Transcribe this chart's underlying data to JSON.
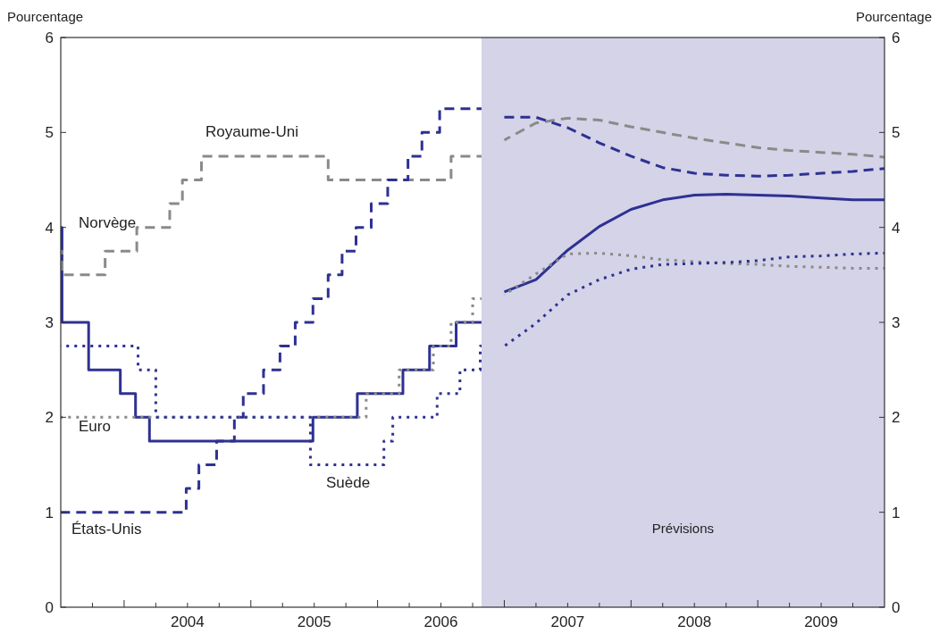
{
  "chart_data": {
    "type": "line",
    "ylabel": "Pourcentage",
    "y2label": "Pourcentage",
    "xlim": [
      2003.5,
      2010
    ],
    "xticks": [
      {
        "value": 2003.75,
        "label": null
      },
      {
        "value": 2004,
        "label": null
      },
      {
        "value": 2004.25,
        "label": null
      },
      {
        "value": 2004.5,
        "label": "2004"
      },
      {
        "value": 2004.75,
        "label": null
      },
      {
        "value": 2005,
        "label": null
      },
      {
        "value": 2005.25,
        "label": null
      },
      {
        "value": 2005.5,
        "label": "2005"
      },
      {
        "value": 2005.75,
        "label": null
      },
      {
        "value": 2006,
        "label": null
      },
      {
        "value": 2006.25,
        "label": null
      },
      {
        "value": 2006.5,
        "label": "2006"
      },
      {
        "value": 2006.75,
        "label": null
      },
      {
        "value": 2007,
        "label": null
      },
      {
        "value": 2007.25,
        "label": null
      },
      {
        "value": 2007.5,
        "label": "2007"
      },
      {
        "value": 2007.75,
        "label": null
      },
      {
        "value": 2008,
        "label": null
      },
      {
        "value": 2008.25,
        "label": null
      },
      {
        "value": 2008.5,
        "label": "2008"
      },
      {
        "value": 2008.75,
        "label": null
      },
      {
        "value": 2009,
        "label": null
      },
      {
        "value": 2009.25,
        "label": null
      },
      {
        "value": 2009.5,
        "label": "2009"
      },
      {
        "value": 2009.75,
        "label": null
      }
    ],
    "ylim": [
      0,
      6
    ],
    "yticks": [
      0,
      1,
      2,
      3,
      4,
      5,
      6
    ],
    "y2lim": [
      0,
      6
    ],
    "y2ticks": [
      0,
      1,
      2,
      3,
      4,
      5,
      6
    ],
    "grid": false,
    "bands": [
      {
        "axis": "x",
        "from": 2006.82,
        "to": 2010,
        "label": "Prévisions",
        "color": "#d4d3e8"
      }
    ],
    "series": [
      {
        "name": "Norvège",
        "type": "step",
        "color": "#2e3192",
        "line_style": "solid",
        "x": [
          2003.5,
          2003.51,
          2003.72,
          2003.97,
          2004.09,
          2004.2,
          2005.49,
          2005.84,
          2006.2,
          2006.41,
          2006.62,
          2006.82
        ],
        "values": [
          4,
          3,
          2.5,
          2.25,
          2,
          1.75,
          2,
          2.25,
          2.5,
          2.75,
          3,
          3
        ]
      },
      {
        "name": "Royaume-Uni",
        "type": "step",
        "color": "#8a8a8a",
        "line_style": "dashed",
        "x": [
          2003.5,
          2003.51,
          2003.85,
          2004.1,
          2004.36,
          2004.46,
          2004.61,
          2005.61,
          2006.58,
          2006.82
        ],
        "values": [
          3.75,
          3.5,
          3.75,
          4,
          4.25,
          4.5,
          4.75,
          4.5,
          4.75,
          4.75
        ]
      },
      {
        "name": "États-Unis",
        "type": "step",
        "color": "#2e3192",
        "line_style": "dashed",
        "x": [
          2003.5,
          2004.49,
          2004.59,
          2004.73,
          2004.87,
          2004.94,
          2005.1,
          2005.23,
          2005.35,
          2005.49,
          2005.61,
          2005.72,
          2005.83,
          2005.95,
          2006.08,
          2006.24,
          2006.35,
          2006.49,
          2006.82
        ],
        "values": [
          1,
          1.25,
          1.5,
          1.75,
          2,
          2.25,
          2.5,
          2.75,
          3,
          3.25,
          3.5,
          3.75,
          4,
          4.25,
          4.5,
          4.75,
          5,
          5.25,
          5.25
        ]
      },
      {
        "name": "Euro",
        "type": "step",
        "color": "#8a8a8a",
        "line_style": "dotted",
        "x": [
          2003.5,
          2005.91,
          2006.17,
          2006.44,
          2006.58,
          2006.75,
          2006.82
        ],
        "values": [
          2,
          2.25,
          2.5,
          2.75,
          3,
          3.25,
          3.25
        ]
      },
      {
        "name": "Suède",
        "type": "step",
        "color": "#2e3192",
        "line_style": "dotted",
        "x": [
          2003.5,
          2004.11,
          2004.25,
          2005.47,
          2006.05,
          2006.12,
          2006.47,
          2006.65,
          2006.81,
          2006.82
        ],
        "values": [
          2.75,
          2.5,
          2,
          1.5,
          1.75,
          2,
          2.25,
          2.5,
          2.75,
          2.75
        ]
      },
      {
        "type": "line",
        "color": "#2e3192",
        "line_style": "solid",
        "x": [
          2007,
          2007.25,
          2007.5,
          2007.75,
          2008,
          2008.25,
          2008.5,
          2008.75,
          2009,
          2009.25,
          2009.5,
          2009.75,
          2010
        ],
        "values": [
          3.32,
          3.45,
          3.76,
          4.01,
          4.19,
          4.29,
          4.34,
          4.35,
          4.34,
          4.33,
          4.31,
          4.29,
          4.29
        ]
      },
      {
        "type": "line",
        "color": "#8a8a8a",
        "line_style": "dashed",
        "x": [
          2007,
          2007.25,
          2007.5,
          2007.75,
          2008,
          2008.25,
          2008.5,
          2008.75,
          2009,
          2009.25,
          2009.5,
          2009.75,
          2010
        ],
        "values": [
          4.92,
          5.1,
          5.15,
          5.13,
          5.06,
          5,
          4.94,
          4.89,
          4.84,
          4.81,
          4.79,
          4.77,
          4.74
        ]
      },
      {
        "type": "line",
        "color": "#2e3192",
        "line_style": "dashed",
        "x": [
          2007,
          2007.25,
          2007.5,
          2007.75,
          2008,
          2008.25,
          2008.5,
          2008.75,
          2009,
          2009.25,
          2009.5,
          2009.75,
          2010
        ],
        "values": [
          5.16,
          5.16,
          5.05,
          4.89,
          4.75,
          4.63,
          4.57,
          4.55,
          4.54,
          4.55,
          4.57,
          4.59,
          4.62
        ]
      },
      {
        "type": "line",
        "color": "#8a8a8a",
        "line_style": "dotted",
        "x": [
          2007,
          2007.25,
          2007.5,
          2007.75,
          2008,
          2008.25,
          2008.5,
          2008.75,
          2009,
          2009.25,
          2009.5,
          2009.75,
          2010
        ],
        "values": [
          3.29,
          3.51,
          3.72,
          3.73,
          3.7,
          3.66,
          3.64,
          3.62,
          3.61,
          3.59,
          3.58,
          3.57,
          3.57
        ]
      },
      {
        "type": "line",
        "color": "#2e3192",
        "line_style": "dotted",
        "x": [
          2007,
          2007.25,
          2007.5,
          2007.75,
          2008,
          2008.25,
          2008.5,
          2008.75,
          2009,
          2009.25,
          2009.5,
          2009.75,
          2010
        ],
        "values": [
          2.75,
          2.99,
          3.29,
          3.45,
          3.56,
          3.61,
          3.62,
          3.63,
          3.65,
          3.69,
          3.7,
          3.72,
          3.73
        ]
      }
    ]
  }
}
